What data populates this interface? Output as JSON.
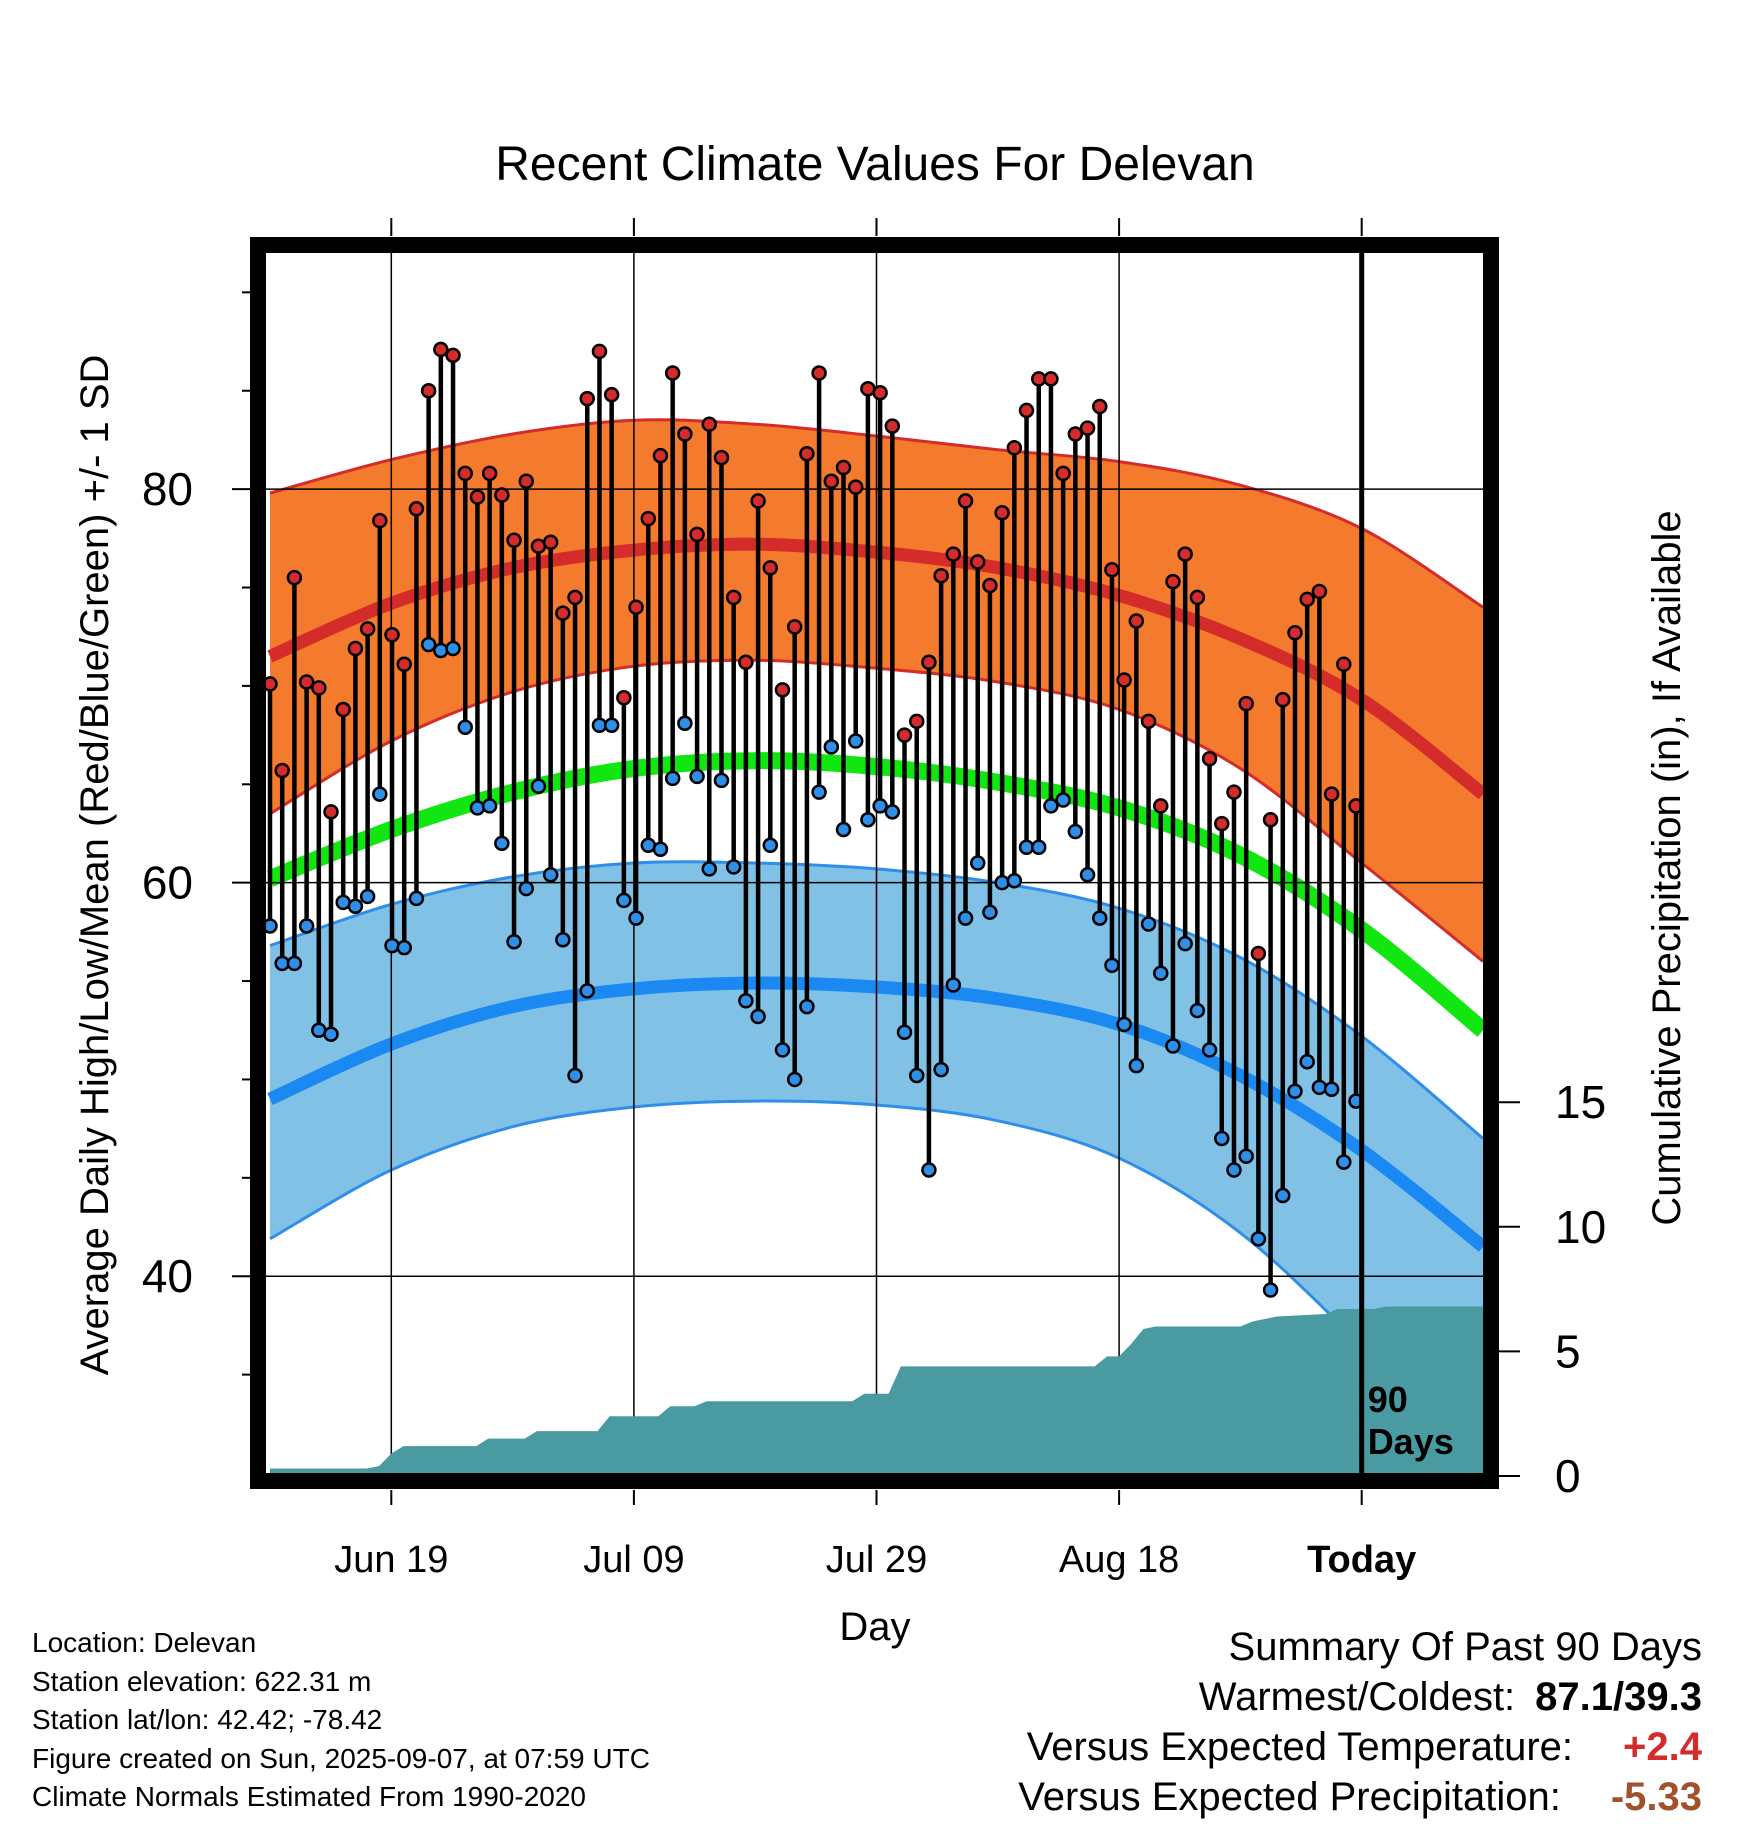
{
  "chart_data": {
    "type": "line",
    "title": "Recent Climate Values For Delevan",
    "xlabel": "Day",
    "ylabel": "Average Daily High/Low/Mean (Red/Blue/Green) +/- 1 SD",
    "y2label": "Cumulative Precipitation (in), If Available",
    "x_ticks": [
      "Jun 19",
      "Jul 09",
      "Jul 29",
      "Aug 18",
      "Today"
    ],
    "x_tick_days": [
      10,
      30,
      50,
      70,
      90
    ],
    "x_range_days": [
      0,
      100
    ],
    "ylim": [
      30,
      92
    ],
    "y_ticks": [
      40,
      60,
      80
    ],
    "y2lim": [
      0,
      50
    ],
    "y2_ticks": [
      0,
      5,
      10,
      15
    ],
    "period_label": "90 Days",
    "grid": true,
    "colors": {
      "high_band": "#f47a2d",
      "high_edge": "#d42b2b",
      "normal_high": "#d42b2b",
      "low_band": "#82c1e6",
      "low_edge": "#2f8fe8",
      "normal_low": "#1a8af2",
      "normal_mean": "#11e611",
      "precip": "#4a9aa2",
      "high_point": "#d42b2b",
      "low_point": "#2f8fe8"
    },
    "normals": {
      "day": [
        0,
        10,
        20,
        30,
        40,
        50,
        60,
        70,
        80,
        90,
        100
      ],
      "high_mean": [
        71.5,
        74.2,
        76.0,
        76.9,
        77.2,
        76.8,
        76.0,
        74.6,
        72.4,
        69.3,
        64.5
      ],
      "high_upper": [
        79.8,
        81.5,
        82.8,
        83.5,
        83.3,
        82.7,
        82.0,
        81.4,
        80.2,
        78.0,
        74.0
      ],
      "high_lower": [
        63.5,
        67.2,
        69.7,
        71.0,
        71.3,
        70.9,
        70.2,
        68.8,
        65.8,
        61.0,
        56.0
      ],
      "mean": [
        60.2,
        62.7,
        64.6,
        65.8,
        66.2,
        65.9,
        65.1,
        63.8,
        61.4,
        57.6,
        52.5
      ],
      "low_mean": [
        49.0,
        51.8,
        53.7,
        54.6,
        54.9,
        54.7,
        54.1,
        52.8,
        50.2,
        46.4,
        41.5
      ],
      "low_upper": [
        56.8,
        58.9,
        60.3,
        61.0,
        61.0,
        60.7,
        60.0,
        58.7,
        56.2,
        52.2,
        47.0
      ],
      "low_lower": [
        41.9,
        45.4,
        47.6,
        48.6,
        48.9,
        48.7,
        47.9,
        46.0,
        42.2,
        36.5,
        30.5
      ]
    },
    "series": [
      {
        "name": "Daily High",
        "values": [
          70.1,
          65.7,
          75.5,
          70.2,
          69.9,
          63.6,
          68.8,
          71.9,
          72.9,
          78.4,
          72.6,
          71.1,
          79.0,
          85.0,
          87.1,
          86.8,
          80.8,
          79.6,
          80.8,
          79.7,
          77.4,
          80.4,
          77.1,
          77.3,
          73.7,
          74.5,
          84.6,
          87.0,
          84.8,
          69.4,
          74.0,
          78.5,
          81.7,
          85.9,
          82.8,
          77.7,
          83.3,
          81.6,
          74.5,
          71.2,
          79.4,
          76.0,
          69.8,
          73.0,
          81.8,
          85.9,
          80.4,
          81.1,
          80.1,
          85.1,
          84.9,
          83.2,
          67.5,
          68.2,
          71.2,
          75.6,
          76.7,
          79.4,
          76.3,
          75.1,
          78.8,
          82.1,
          84.0,
          85.6,
          85.6,
          80.8,
          82.8,
          83.1,
          84.2,
          75.9,
          70.3,
          73.3,
          68.2,
          63.9,
          75.3,
          76.7,
          74.5,
          66.3,
          63.0,
          64.6,
          69.1,
          56.4,
          63.2,
          69.3,
          72.7,
          74.4,
          74.8,
          64.5,
          71.1,
          63.9
        ],
        "color": "#d42b2b"
      },
      {
        "name": "Daily Low",
        "values": [
          57.8,
          55.9,
          55.9,
          57.8,
          52.5,
          52.3,
          59.0,
          58.8,
          59.3,
          64.5,
          56.8,
          56.7,
          59.2,
          72.1,
          71.8,
          71.9,
          67.9,
          63.8,
          63.9,
          62.0,
          57.0,
          59.7,
          64.9,
          60.4,
          57.1,
          50.2,
          54.5,
          68.0,
          68.0,
          59.1,
          58.2,
          61.9,
          61.7,
          65.3,
          68.1,
          65.4,
          60.7,
          65.2,
          60.8,
          54.0,
          53.2,
          61.9,
          51.5,
          50.0,
          53.7,
          64.6,
          66.9,
          62.7,
          67.2,
          63.2,
          63.9,
          63.6,
          52.4,
          50.2,
          45.4,
          50.5,
          54.8,
          58.2,
          61.0,
          58.5,
          60.0,
          60.1,
          61.8,
          61.8,
          63.9,
          64.2,
          62.6,
          60.4,
          58.2,
          55.8,
          52.8,
          50.7,
          57.9,
          55.4,
          51.7,
          56.9,
          53.5,
          51.5,
          47.0,
          45.4,
          46.1,
          41.9,
          39.3,
          44.1,
          49.4,
          50.9,
          49.6,
          49.5,
          45.8,
          48.9
        ],
        "color": "#2f8fe8"
      },
      {
        "name": "Cumulative Precipitation",
        "days": [
          0,
          8,
          9,
          10,
          11,
          17,
          18,
          21,
          22,
          27,
          28,
          32,
          33,
          35,
          36,
          48,
          49,
          51,
          52,
          68,
          69,
          70,
          71,
          72,
          73,
          80,
          81,
          82,
          83,
          87,
          88,
          91,
          92,
          100
        ],
        "values": [
          0.3,
          0.3,
          0.4,
          0.9,
          1.2,
          1.2,
          1.5,
          1.5,
          1.8,
          1.8,
          2.4,
          2.4,
          2.8,
          2.8,
          3.0,
          3.0,
          3.3,
          3.3,
          4.4,
          4.4,
          4.8,
          4.8,
          5.3,
          5.9,
          6.0,
          6.0,
          6.2,
          6.3,
          6.4,
          6.5,
          6.7,
          6.7,
          6.8,
          6.8
        ],
        "color": "#4a9aa2"
      }
    ]
  },
  "meta": {
    "location": "Location: Delevan",
    "elevation": "Station elevation: 622.31 m",
    "latlon": "Station lat/lon: 42.42; -78.42",
    "created": "Figure created on Sun, 2025-09-07, at 07:59 UTC",
    "normals_period": "Climate Normals Estimated From 1990-2020"
  },
  "summary": {
    "heading": "Summary Of Past 90 Days",
    "warm_cold_label": "Warmest/Coldest:",
    "warm_cold_value": "87.1/39.3",
    "temp_label": "Versus Expected Temperature:",
    "temp_value": "+2.4",
    "temp_color": "#d42b2b",
    "precip_label": "Versus Expected Precipitation:",
    "precip_value": "-5.33",
    "precip_color": "#a0522d"
  }
}
